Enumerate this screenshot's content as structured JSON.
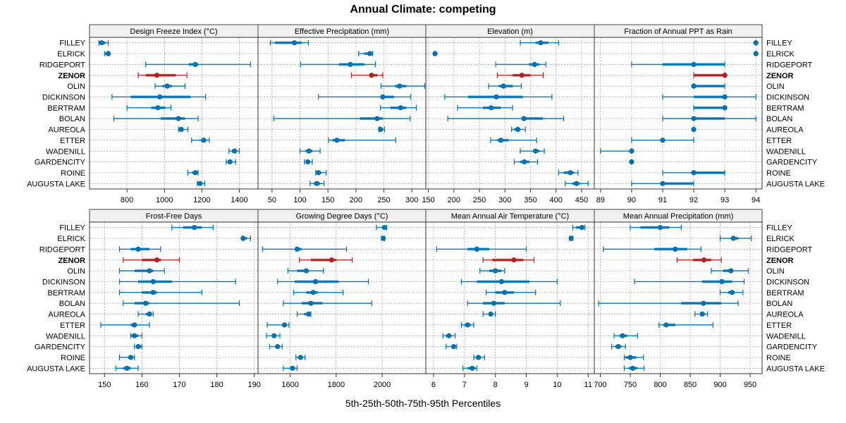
{
  "title": "Annual Climate: competing",
  "xlabel": "5th-25th-50th-75th-95th Percentiles",
  "colors": {
    "default": "#0072B2",
    "default_light": "#6BAED6",
    "highlight": "#B22222",
    "highlight_light": "#E07070"
  },
  "chart_data": {
    "type": "dotplot-percentiles",
    "title": "Annual Climate: competing",
    "xlabel": "5th-25th-50th-75th-95th Percentiles",
    "highlight": "ZENOR",
    "grid": true,
    "categories": [
      "FILLEY",
      "ELRICK",
      "RIDGEPORT",
      "ZENOR",
      "OLIN",
      "DICKINSON",
      "BERTRAM",
      "BOLAN",
      "AUREOLA",
      "ETTER",
      "WADENILL",
      "GARDENCITY",
      "ROINE",
      "AUGUSTA LAKE"
    ],
    "panels": [
      {
        "title": "Design Freeze Index (°C)",
        "xlim": [
          600,
          1500
        ],
        "ticks": [
          800,
          1000,
          1200,
          1400
        ],
        "values": [
          [
            650,
            655,
            665,
            685,
            700
          ],
          [
            680,
            680,
            700,
            702,
            702
          ],
          [
            900,
            1130,
            1165,
            1180,
            1460
          ],
          [
            860,
            900,
            960,
            1060,
            1120
          ],
          [
            950,
            990,
            1015,
            1040,
            1110
          ],
          [
            720,
            820,
            975,
            1140,
            1220
          ],
          [
            800,
            930,
            965,
            1005,
            1035
          ],
          [
            730,
            980,
            1075,
            1110,
            1180
          ],
          [
            1075,
            1080,
            1090,
            1100,
            1125
          ],
          [
            1145,
            1195,
            1210,
            1220,
            1240
          ],
          [
            1345,
            1360,
            1375,
            1385,
            1400
          ],
          [
            1330,
            1340,
            1350,
            1360,
            1380
          ],
          [
            1125,
            1150,
            1165,
            1175,
            1180
          ],
          [
            1175,
            1180,
            1190,
            1200,
            1215
          ]
        ]
      },
      {
        "title": "Effective Precipitation (mm)",
        "xlim": [
          25,
          325
        ],
        "ticks": [
          50,
          100,
          150,
          200,
          250,
          300
        ],
        "values": [
          [
            47,
            55,
            90,
            103,
            115
          ],
          [
            205,
            215,
            225,
            228,
            230
          ],
          [
            101,
            170,
            190,
            215,
            235
          ],
          [
            192,
            225,
            228,
            238,
            248
          ],
          [
            245,
            270,
            278,
            290,
            323
          ],
          [
            133,
            245,
            248,
            268,
            298
          ],
          [
            244,
            262,
            280,
            290,
            308
          ],
          [
            53,
            207,
            238,
            248,
            297
          ],
          [
            241,
            243,
            244,
            247,
            251
          ],
          [
            151,
            158,
            166,
            180,
            271
          ],
          [
            100,
            110,
            116,
            122,
            136
          ],
          [
            108,
            110,
            114,
            118,
            122
          ],
          [
            128,
            130,
            133,
            138,
            147
          ],
          [
            118,
            125,
            130,
            136,
            143
          ]
        ]
      },
      {
        "title": "Elevation (m)",
        "xlim": [
          145,
          475
        ],
        "ticks": [
          150,
          200,
          250,
          300,
          350,
          400,
          450
        ],
        "values": [
          [
            330,
            360,
            370,
            385,
            405
          ],
          [
            163,
            163,
            163,
            163,
            163
          ],
          [
            282,
            347,
            358,
            367,
            380
          ],
          [
            285,
            315,
            333,
            350,
            375
          ],
          [
            268,
            288,
            297,
            315,
            332
          ],
          [
            182,
            228,
            283,
            335,
            392
          ],
          [
            207,
            257,
            273,
            292,
            315
          ],
          [
            188,
            338,
            337,
            374,
            415
          ],
          [
            313,
            318,
            325,
            330,
            340
          ],
          [
            272,
            285,
            292,
            307,
            362
          ],
          [
            330,
            355,
            360,
            368,
            377
          ],
          [
            318,
            330,
            338,
            348,
            364
          ],
          [
            405,
            415,
            428,
            435,
            443
          ],
          [
            418,
            432,
            440,
            447,
            463
          ]
        ]
      },
      {
        "title": "Fraction of Annual PPT as Rain",
        "xlim": [
          88.8,
          94.2
        ],
        "ticks": [
          89,
          90,
          91,
          92,
          93,
          94
        ],
        "values": [
          [
            94,
            94,
            94,
            94,
            94
          ],
          [
            94,
            94,
            94,
            94,
            94
          ],
          [
            90,
            91,
            92,
            93,
            93
          ],
          [
            92,
            92,
            93,
            93,
            93
          ],
          [
            92,
            92,
            92,
            93,
            93
          ],
          [
            91,
            92,
            93,
            93,
            94
          ],
          [
            92,
            92,
            93,
            93,
            93
          ],
          [
            91,
            92,
            92,
            93,
            94
          ],
          [
            92,
            92,
            92,
            92,
            92
          ],
          [
            90,
            91,
            91,
            91,
            92
          ],
          [
            89,
            90,
            90,
            90,
            90
          ],
          [
            90,
            90,
            90,
            90,
            90
          ],
          [
            91,
            92,
            92,
            93,
            93
          ],
          [
            90,
            91,
            91,
            92,
            92
          ]
        ]
      },
      {
        "title": "Frost-Free Days",
        "xlim": [
          146,
          191
        ],
        "ticks": [
          150,
          160,
          170,
          180,
          190
        ],
        "values": [
          [
            168,
            171,
            174,
            176,
            179
          ],
          [
            187,
            187,
            187,
            188,
            189
          ],
          [
            154,
            157,
            159,
            162,
            165
          ],
          [
            155,
            160,
            164,
            165,
            170
          ],
          [
            154,
            158,
            162,
            163,
            166
          ],
          [
            154,
            159,
            163,
            168,
            185
          ],
          [
            154,
            160,
            163,
            164,
            176
          ],
          [
            155,
            158,
            161,
            162,
            186
          ],
          [
            159,
            161,
            162,
            162,
            163
          ],
          [
            149,
            157,
            158,
            158,
            162
          ],
          [
            157,
            157,
            158,
            159,
            160
          ],
          [
            158,
            159,
            159,
            160,
            160
          ],
          [
            154,
            157,
            157,
            157,
            158
          ],
          [
            153,
            155,
            156,
            157,
            159
          ]
        ]
      },
      {
        "title": "Growing Degree Days (°C)",
        "xlim": [
          1460,
          2190
        ],
        "ticks": [
          1600,
          1800,
          2000
        ],
        "values": [
          [
            1975,
            2000,
            2010,
            2015,
            2020
          ],
          [
            1997,
            2000,
            2005,
            2008,
            2010
          ],
          [
            1480,
            1620,
            1630,
            1650,
            1845
          ],
          [
            1640,
            1690,
            1780,
            1800,
            1870
          ],
          [
            1590,
            1630,
            1670,
            1680,
            1745
          ],
          [
            1545,
            1620,
            1710,
            1810,
            1940
          ],
          [
            1615,
            1670,
            1700,
            1720,
            1830
          ],
          [
            1570,
            1650,
            1690,
            1740,
            1955
          ],
          [
            1630,
            1660,
            1680,
            1680,
            1690
          ],
          [
            1500,
            1570,
            1575,
            1580,
            1595
          ],
          [
            1497,
            1520,
            1530,
            1535,
            1555
          ],
          [
            1510,
            1540,
            1545,
            1550,
            1565
          ],
          [
            1625,
            1635,
            1645,
            1650,
            1665
          ],
          [
            1570,
            1600,
            1610,
            1620,
            1630
          ]
        ]
      },
      {
        "title": "Mean Annual Air Temperature (°C)",
        "xlim": [
          5.75,
          11.2
        ],
        "ticks": [
          6,
          7,
          8,
          9,
          10,
          11
        ],
        "values": [
          [
            10.5,
            10.6,
            10.8,
            10.85,
            10.9
          ],
          [
            10.4,
            10.45,
            10.45,
            10.45,
            10.5
          ],
          [
            6.1,
            7.1,
            7.4,
            7.8,
            9.0
          ],
          [
            7.6,
            7.9,
            8.6,
            8.9,
            9.25
          ],
          [
            7.5,
            7.8,
            8.0,
            8.2,
            8.3
          ],
          [
            6.9,
            7.4,
            8.2,
            9.1,
            10.0
          ],
          [
            7.7,
            8.0,
            8.3,
            8.6,
            9.3
          ],
          [
            7.1,
            7.6,
            7.95,
            8.3,
            10.1
          ],
          [
            7.6,
            7.8,
            7.85,
            7.9,
            8.0
          ],
          [
            6.9,
            7.0,
            7.1,
            7.2,
            7.3
          ],
          [
            6.3,
            6.4,
            6.5,
            6.5,
            6.7
          ],
          [
            6.4,
            6.6,
            6.65,
            6.7,
            6.75
          ],
          [
            7.3,
            7.4,
            7.45,
            7.5,
            7.65
          ],
          [
            6.95,
            7.1,
            7.25,
            7.35,
            7.4
          ]
        ]
      },
      {
        "title": "Mean Annual Precipitation (mm)",
        "xlim": [
          690,
          970
        ],
        "ticks": [
          700,
          750,
          800,
          850,
          900,
          950
        ],
        "values": [
          [
            750,
            767,
            800,
            815,
            835
          ],
          [
            900,
            920,
            922,
            930,
            952
          ],
          [
            705,
            790,
            825,
            845,
            868
          ],
          [
            828,
            855,
            873,
            885,
            902
          ],
          [
            885,
            905,
            918,
            922,
            947
          ],
          [
            757,
            870,
            903,
            920,
            940
          ],
          [
            900,
            913,
            920,
            924,
            938
          ],
          [
            697,
            835,
            872,
            902,
            930
          ],
          [
            858,
            868,
            870,
            875,
            879
          ],
          [
            798,
            805,
            810,
            825,
            888
          ],
          [
            723,
            732,
            737,
            745,
            762
          ],
          [
            719,
            725,
            730,
            735,
            742
          ],
          [
            740,
            742,
            750,
            760,
            772
          ],
          [
            740,
            748,
            754,
            762,
            773
          ]
        ]
      }
    ]
  }
}
